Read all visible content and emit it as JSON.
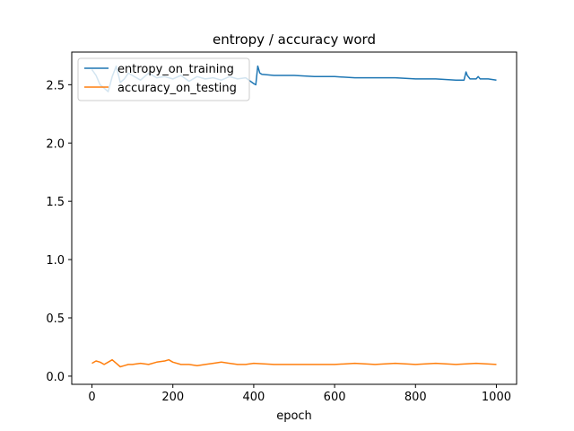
{
  "chart_data": {
    "type": "line",
    "title": "entropy / accuracy word",
    "xlabel": "epoch",
    "ylabel": "",
    "xlim": [
      -50,
      1050
    ],
    "ylim": [
      -0.07,
      2.78
    ],
    "xticks": [
      0,
      200,
      400,
      600,
      800,
      1000
    ],
    "yticks": [
      0.0,
      0.5,
      1.0,
      1.5,
      2.0,
      2.5
    ],
    "xtick_labels": [
      "0",
      "200",
      "400",
      "600",
      "800",
      "1000"
    ],
    "ytick_labels": [
      "0.0",
      "0.5",
      "1.0",
      "1.5",
      "2.0",
      "2.5"
    ],
    "grid": false,
    "legend_position": "top-left",
    "series": [
      {
        "name": "entropy_on_training",
        "color": "#1f77b4",
        "x": [
          0,
          10,
          20,
          30,
          40,
          50,
          60,
          70,
          80,
          90,
          100,
          120,
          140,
          160,
          180,
          200,
          220,
          240,
          260,
          280,
          300,
          320,
          340,
          360,
          380,
          400,
          405,
          410,
          415,
          420,
          450,
          500,
          550,
          600,
          650,
          700,
          750,
          800,
          850,
          900,
          920,
          925,
          928,
          935,
          950,
          955,
          960,
          980,
          1000
        ],
        "y": [
          2.63,
          2.58,
          2.5,
          2.47,
          2.44,
          2.57,
          2.66,
          2.52,
          2.55,
          2.6,
          2.58,
          2.54,
          2.6,
          2.56,
          2.57,
          2.55,
          2.58,
          2.53,
          2.57,
          2.55,
          2.56,
          2.54,
          2.57,
          2.55,
          2.56,
          2.51,
          2.5,
          2.66,
          2.6,
          2.59,
          2.58,
          2.58,
          2.57,
          2.57,
          2.56,
          2.56,
          2.56,
          2.55,
          2.55,
          2.54,
          2.54,
          2.61,
          2.58,
          2.55,
          2.55,
          2.57,
          2.55,
          2.55,
          2.54
        ]
      },
      {
        "name": "accuracy_on_testing",
        "color": "#ff7f0e",
        "x": [
          0,
          10,
          20,
          30,
          40,
          50,
          60,
          70,
          80,
          90,
          100,
          120,
          140,
          160,
          180,
          190,
          200,
          220,
          240,
          260,
          280,
          300,
          320,
          340,
          360,
          380,
          400,
          450,
          500,
          550,
          600,
          650,
          700,
          750,
          800,
          850,
          900,
          950,
          1000
        ],
        "y": [
          0.11,
          0.13,
          0.12,
          0.1,
          0.12,
          0.14,
          0.11,
          0.08,
          0.09,
          0.1,
          0.1,
          0.11,
          0.1,
          0.12,
          0.13,
          0.14,
          0.12,
          0.1,
          0.1,
          0.09,
          0.1,
          0.11,
          0.12,
          0.11,
          0.1,
          0.1,
          0.11,
          0.1,
          0.1,
          0.1,
          0.1,
          0.11,
          0.1,
          0.11,
          0.1,
          0.11,
          0.1,
          0.11,
          0.1
        ]
      }
    ]
  }
}
